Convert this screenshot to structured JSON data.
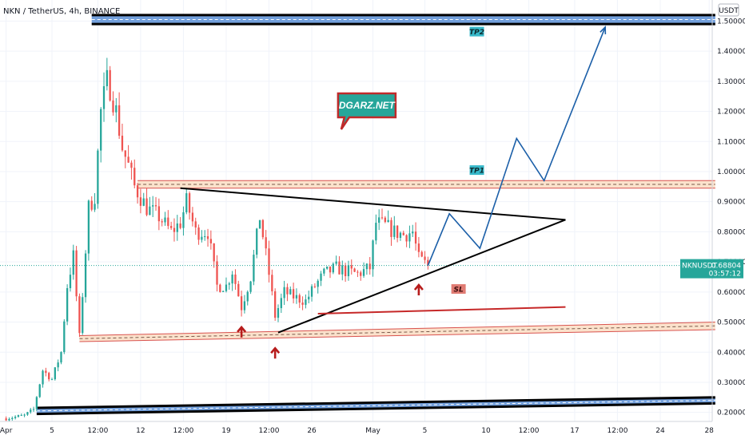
{
  "header": {
    "title": "NKN / TetherUS, 4h, BINANCE",
    "currency_badge": "USDT"
  },
  "colors": {
    "up": "#26a69a",
    "down": "#ef5350",
    "trend": "#000000",
    "projection": "#1b5fa8",
    "sl_line": "#c62828",
    "zone_fill": "#fbe2cc",
    "zone_stroke": "#d9534f",
    "blue_zone": "#5b8fd6",
    "price_tag": "#26a69a",
    "tp_tag": "#37b8c9",
    "sl_tag": "#e07b73",
    "arrow": "#b71c1c",
    "brand": "#c02a2a"
  },
  "chart_data": {
    "type": "candlestick",
    "symbol": "NKNUSDT",
    "timeframe": "4h",
    "exchange": "BINANCE",
    "ylim": [
      0.17,
      1.57
    ],
    "xlim": [
      -2,
      231
    ],
    "yticks": [
      0.2,
      0.3,
      0.4,
      0.5,
      0.6,
      0.7,
      0.8,
      0.9,
      1.0,
      1.1,
      1.2,
      1.3,
      1.4,
      1.5
    ],
    "ytick_labels": [
      "0.20000",
      "0.30000",
      "0.40000",
      "0.50000",
      "0.60000",
      "0.70000",
      "0.80000",
      "0.90000",
      "1.00000",
      "1.10000",
      "1.20000",
      "1.30000",
      "1.40000",
      "1.50000"
    ],
    "xticks": [
      {
        "x": 0,
        "label": "Apr"
      },
      {
        "x": 15,
        "label": "5"
      },
      {
        "x": 30,
        "label": "12:00"
      },
      {
        "x": 44,
        "label": "12"
      },
      {
        "x": 58,
        "label": "12:00"
      },
      {
        "x": 72,
        "label": "19"
      },
      {
        "x": 86,
        "label": "12:00"
      },
      {
        "x": 100,
        "label": "26"
      },
      {
        "x": 120,
        "label": "May"
      },
      {
        "x": 137,
        "label": "5"
      },
      {
        "x": 157,
        "label": "10"
      },
      {
        "x": 171,
        "label": "12:00"
      },
      {
        "x": 186,
        "label": "17"
      },
      {
        "x": 200,
        "label": "12:00"
      },
      {
        "x": 214,
        "label": "24"
      },
      {
        "x": 230,
        "label": "28"
      }
    ],
    "anchors": [
      [
        0,
        0.18
      ],
      [
        6,
        0.19
      ],
      [
        9,
        0.21
      ],
      [
        12,
        0.34
      ],
      [
        15,
        0.31
      ],
      [
        18,
        0.4
      ],
      [
        20,
        0.62
      ],
      [
        22,
        0.72
      ],
      [
        24,
        0.45
      ],
      [
        27,
        0.88
      ],
      [
        29,
        0.92
      ],
      [
        31,
        1.2
      ],
      [
        33,
        1.3
      ],
      [
        34,
        1.28
      ],
      [
        36,
        1.2
      ],
      [
        38,
        1.08
      ],
      [
        40,
        1.02
      ],
      [
        42,
        0.95
      ],
      [
        46,
        0.88
      ],
      [
        50,
        0.85
      ],
      [
        54,
        0.8
      ],
      [
        57,
        0.83
      ],
      [
        59,
        0.9
      ],
      [
        62,
        0.8
      ],
      [
        66,
        0.8
      ],
      [
        69,
        0.62
      ],
      [
        72,
        0.62
      ],
      [
        74,
        0.67
      ],
      [
        77,
        0.55
      ],
      [
        80,
        0.65
      ],
      [
        83,
        0.85
      ],
      [
        86,
        0.66
      ],
      [
        88,
        0.52
      ],
      [
        91,
        0.6
      ],
      [
        95,
        0.58
      ],
      [
        98,
        0.57
      ],
      [
        101,
        0.62
      ],
      [
        104,
        0.66
      ],
      [
        108,
        0.68
      ],
      [
        111,
        0.67
      ],
      [
        115,
        0.66
      ],
      [
        119,
        0.68
      ],
      [
        121,
        0.83
      ],
      [
        124,
        0.82
      ],
      [
        127,
        0.8
      ],
      [
        130,
        0.79
      ],
      [
        133,
        0.8
      ],
      [
        135,
        0.71
      ],
      [
        138,
        0.688
      ]
    ],
    "last_price": 0.68804,
    "last_price_label": "0.68804",
    "countdown": "03:57:12",
    "symbol_tag": "NKNUSDT",
    "zones": [
      {
        "name": "TP2",
        "type": "blue",
        "x": [
          28,
          232
        ],
        "y": [
          1.49,
          1.52
        ]
      },
      {
        "name": "TP1",
        "type": "orange",
        "x": [
          43,
          232
        ],
        "y": [
          0.945,
          0.97
        ]
      },
      {
        "name": "support",
        "type": "orange",
        "x": [
          24,
          232
        ],
        "y_left": [
          0.435,
          0.455
        ],
        "y_right": [
          0.475,
          0.5
        ]
      },
      {
        "name": "base",
        "type": "blue",
        "x": [
          10,
          232
        ],
        "y_left": [
          0.195,
          0.215
        ],
        "y_right": [
          0.23,
          0.25
        ]
      }
    ],
    "trendlines": [
      {
        "name": "upper-trendline",
        "from": [
          57,
          0.945
        ],
        "to": [
          183,
          0.84
        ]
      },
      {
        "name": "lower-trendline",
        "from": [
          89,
          0.465
        ],
        "to": [
          183,
          0.84
        ]
      },
      {
        "name": "sl-line",
        "from": [
          102,
          0.528
        ],
        "to": [
          183,
          0.55
        ]
      }
    ],
    "projection": [
      [
        138,
        0.688
      ],
      [
        145,
        0.86
      ],
      [
        155,
        0.745
      ],
      [
        167,
        1.11
      ],
      [
        176,
        0.97
      ],
      [
        196,
        1.48
      ]
    ],
    "markers": [
      {
        "x": 77,
        "y": 0.47
      },
      {
        "x": 88,
        "y": 0.4
      },
      {
        "x": 135,
        "y": 0.61
      }
    ],
    "labels": [
      {
        "name": "TP2",
        "text": "TP2",
        "x": 154,
        "y": 1.465
      },
      {
        "name": "TP1",
        "text": "TP1",
        "x": 154,
        "y": 1.005
      },
      {
        "name": "SL",
        "text": "SL",
        "x": 148,
        "y": 0.61
      }
    ],
    "brand_note": {
      "text": "DGARZ.NET",
      "x": 118,
      "y": 1.22
    }
  }
}
